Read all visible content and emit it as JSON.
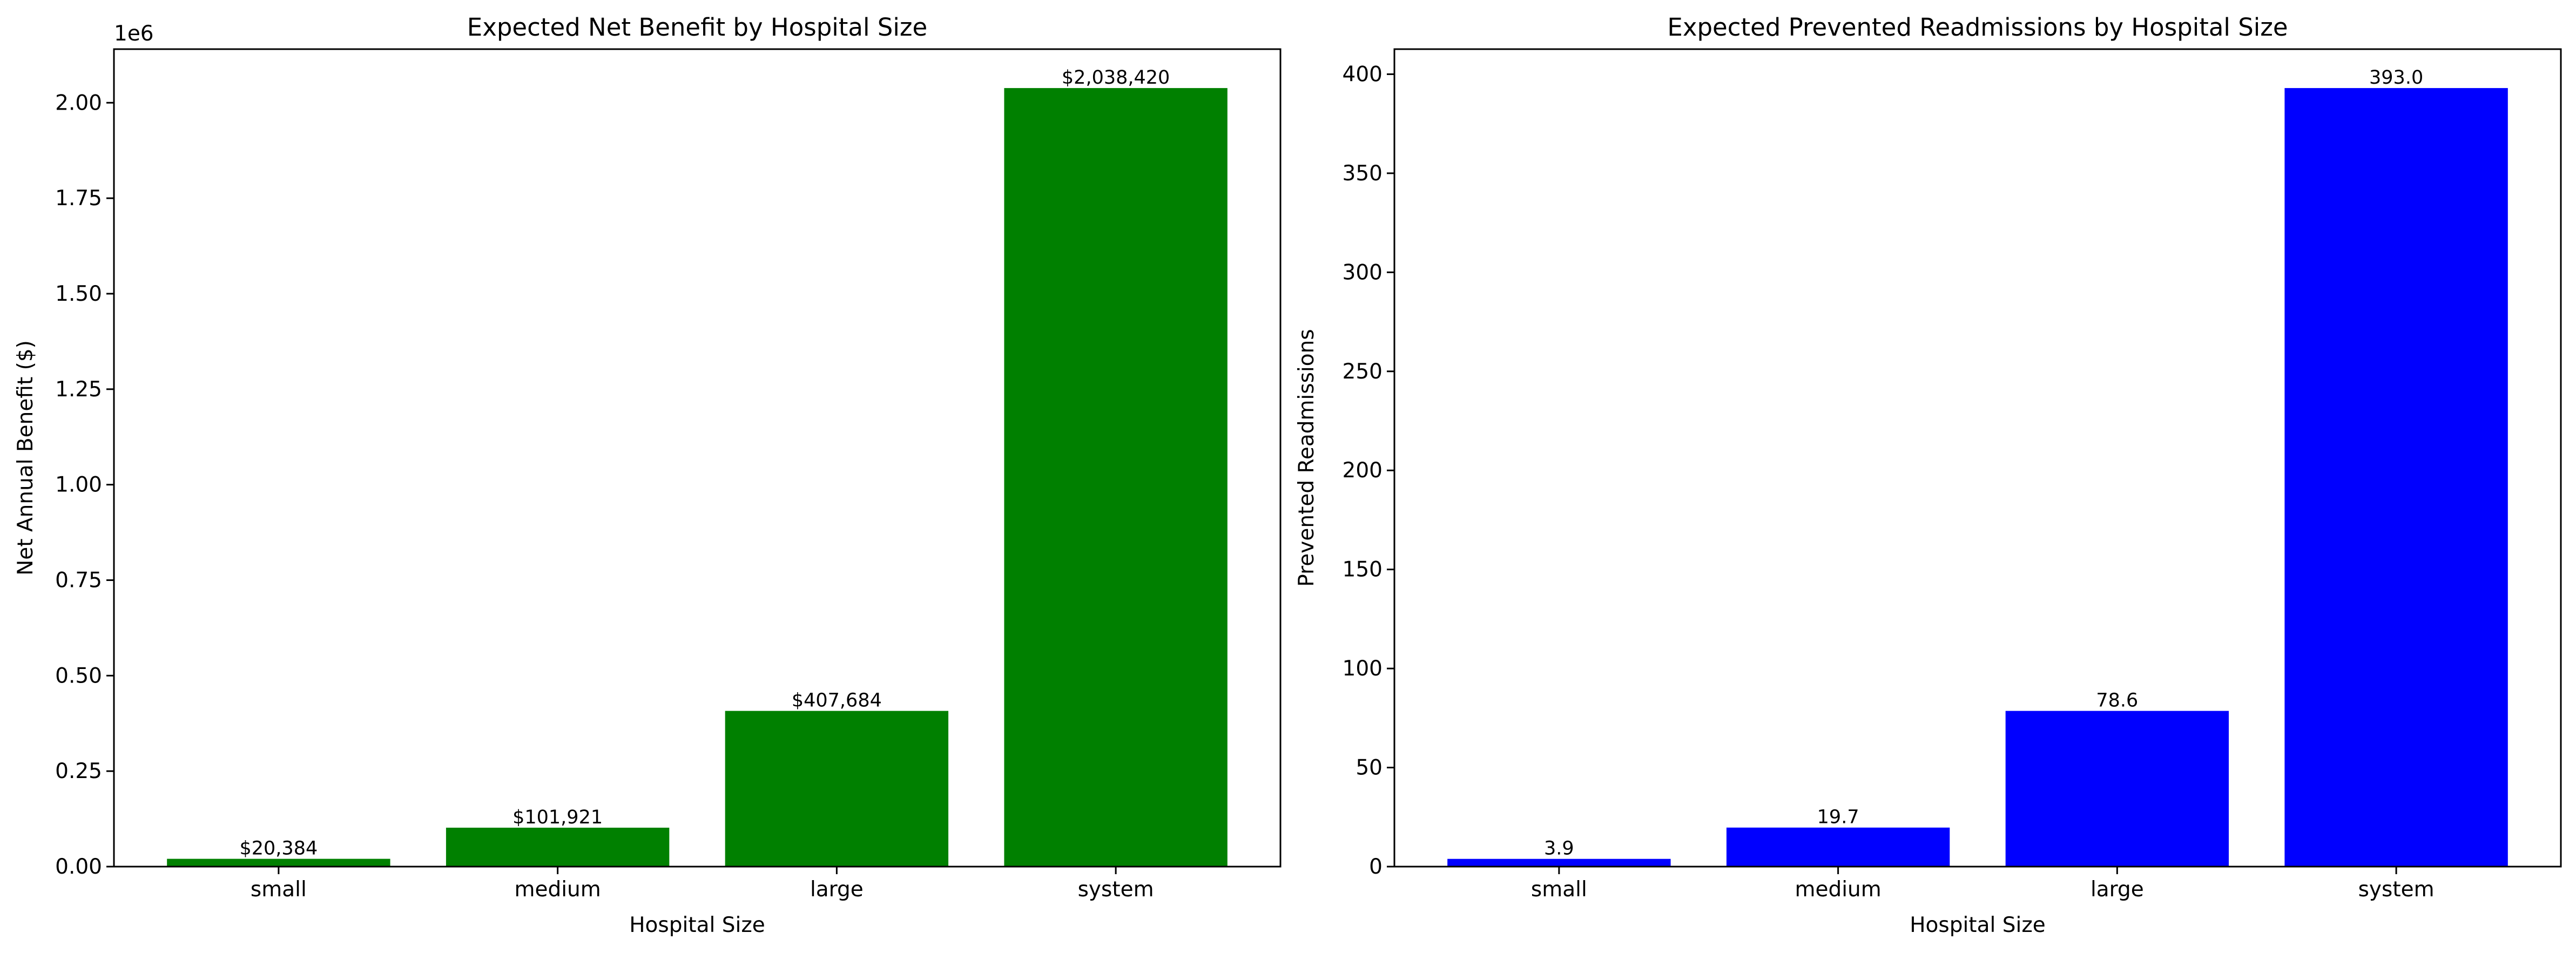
{
  "chart_data": [
    {
      "type": "bar",
      "title": "Expected Net Benefit by Hospital Size",
      "xlabel": "Hospital Size",
      "ylabel": "Net Annual Benefit ($)",
      "categories": [
        "small",
        "medium",
        "large",
        "system"
      ],
      "values": [
        20384,
        101921,
        407684,
        2038420
      ],
      "value_labels": [
        "$20,384",
        "$101,921",
        "$407,684",
        "$2,038,420"
      ],
      "ylim": [
        0,
        2140341
      ],
      "y_ticks": [
        0,
        250000,
        500000,
        750000,
        1000000,
        1250000,
        1500000,
        1750000,
        2000000
      ],
      "y_tick_labels": [
        "0.00",
        "0.25",
        "0.50",
        "0.75",
        "1.00",
        "1.25",
        "1.50",
        "1.75",
        "2.00"
      ],
      "y_offset_text": "1e6",
      "color": "#008000",
      "grid": false,
      "legend": "none"
    },
    {
      "type": "bar",
      "title": "Expected Prevented Readmissions by Hospital Size",
      "xlabel": "Hospital Size",
      "ylabel": "Prevented Readmissions",
      "categories": [
        "small",
        "medium",
        "large",
        "system"
      ],
      "values": [
        3.9,
        19.7,
        78.6,
        393.0
      ],
      "value_labels": [
        "3.9",
        "19.7",
        "78.6",
        "393.0"
      ],
      "ylim": [
        0,
        412.65
      ],
      "y_ticks": [
        0,
        50,
        100,
        150,
        200,
        250,
        300,
        350,
        400
      ],
      "y_tick_labels": [
        "0",
        "50",
        "100",
        "150",
        "200",
        "250",
        "300",
        "350",
        "400"
      ],
      "y_offset_text": "",
      "color": "#0000ff",
      "grid": false,
      "legend": "none"
    }
  ]
}
